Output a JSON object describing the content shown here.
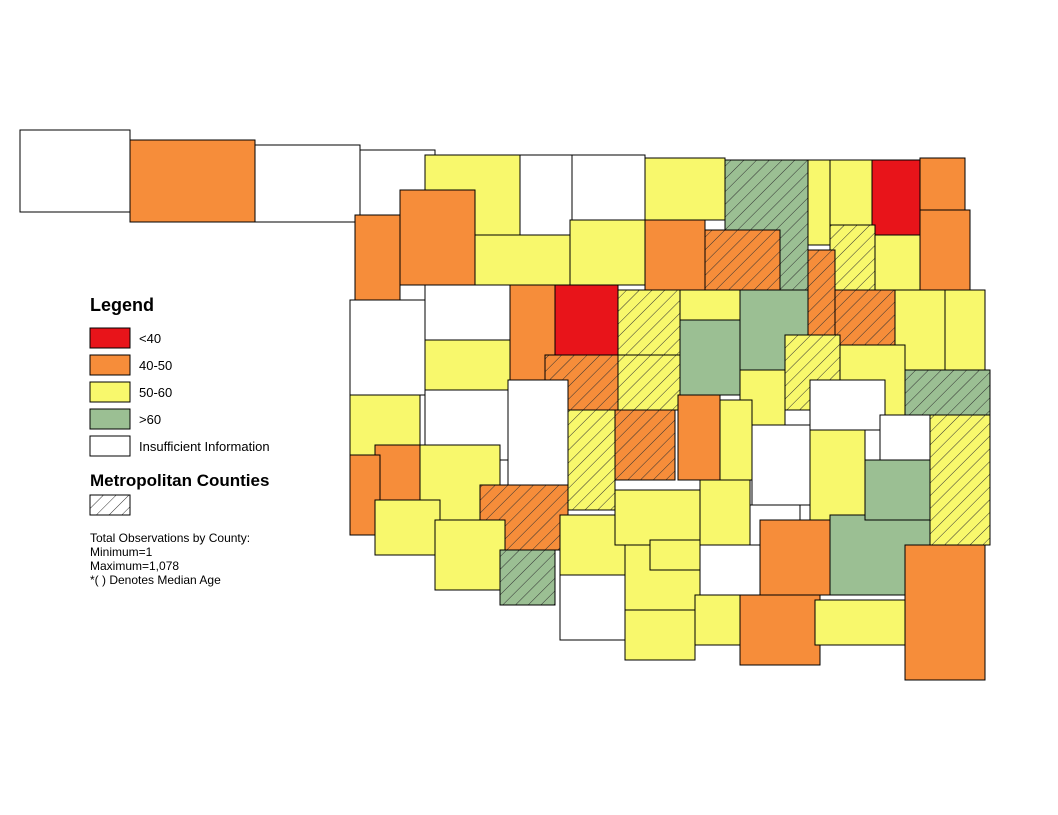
{
  "legend": {
    "title": "Legend",
    "items": [
      {
        "label": "<40",
        "color": "#e8141a"
      },
      {
        "label": "40-50",
        "color": "#f68d3a"
      },
      {
        "label": "50-60",
        "color": "#f8f86c"
      },
      {
        "label": ">60",
        "color": "#9bbf93"
      },
      {
        "label": "Insufficient Information",
        "color": "#ffffff"
      }
    ]
  },
  "metro": {
    "title": "Metropolitan Counties"
  },
  "notes": [
    "Total Observations by County:",
    "Minimum=1",
    "Maximum=1,078",
    "*( ) Denotes Median Age"
  ]
}
